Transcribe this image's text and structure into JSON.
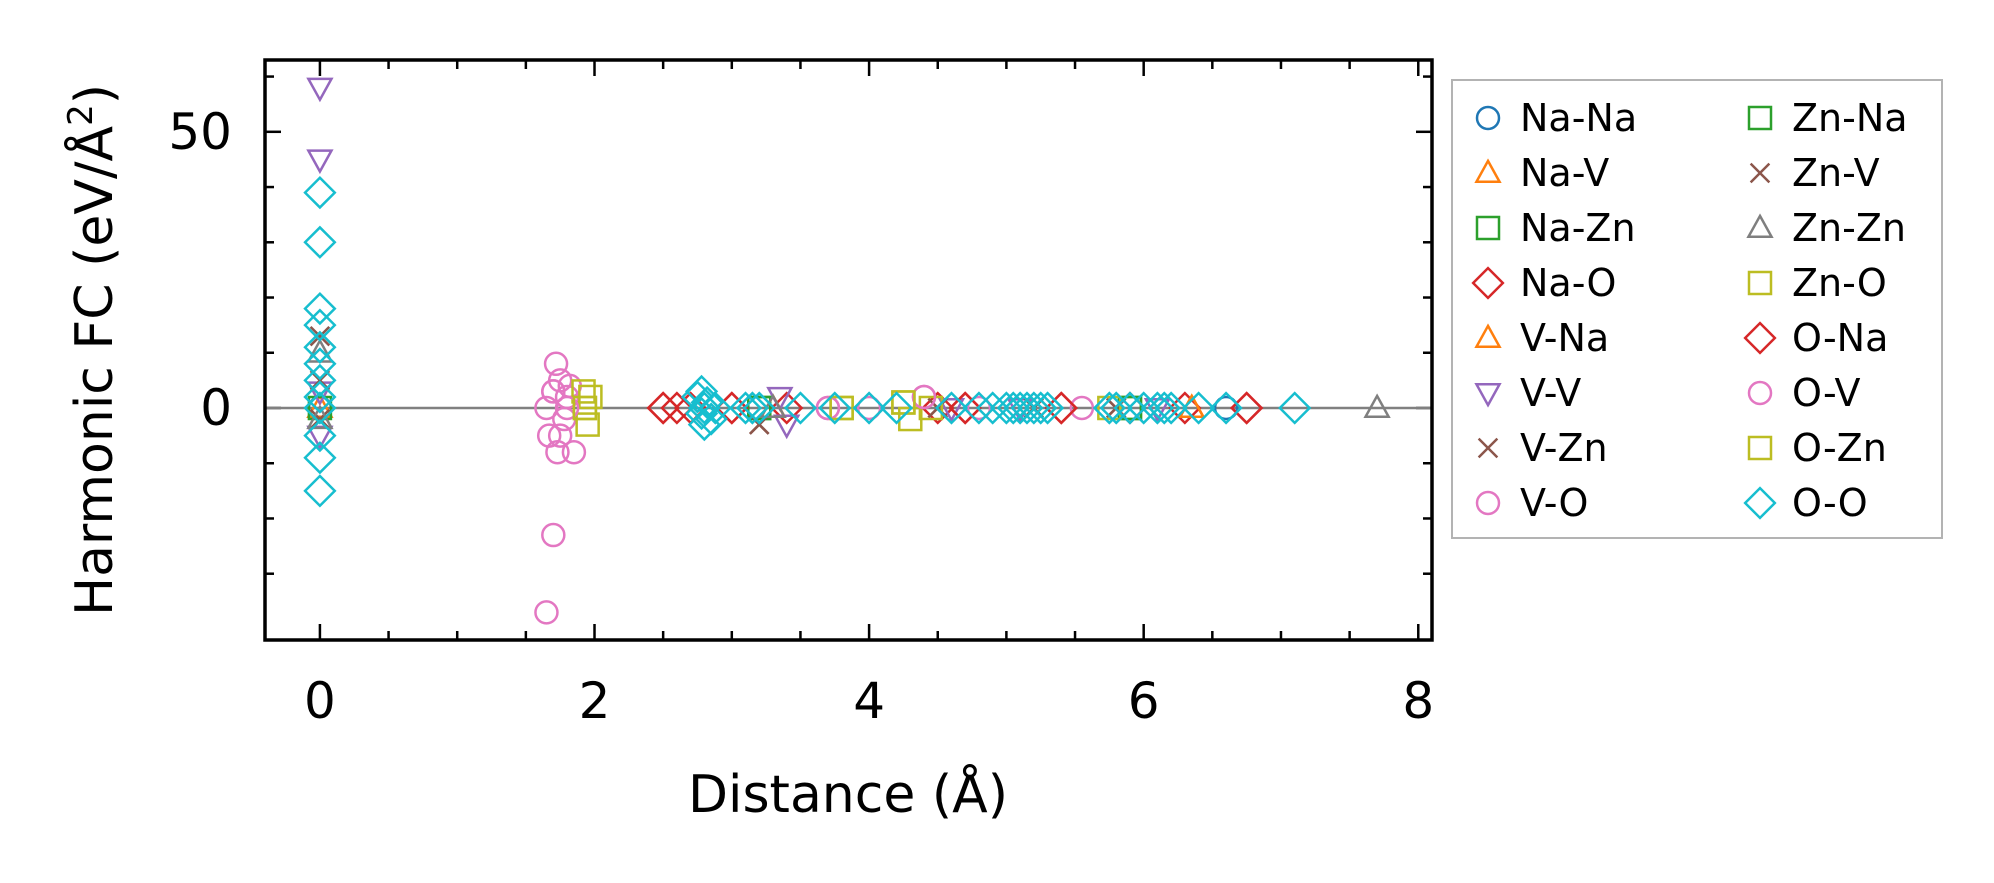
{
  "chart_data": {
    "type": "scatter",
    "xlabel": "Distance (Å)",
    "ylabel_parts": [
      "Harmonic FC (eV/Å",
      "2",
      ")"
    ],
    "xlim": [
      -0.4,
      8.1
    ],
    "ylim": [
      -42,
      63
    ],
    "xticks": [
      0,
      2,
      4,
      6,
      8
    ],
    "xtick_labels": [
      "0",
      "2",
      "4",
      "6",
      "8"
    ],
    "xminor": [
      0.5,
      1,
      1.5,
      2.5,
      3,
      3.5,
      4.5,
      5,
      5.5,
      6.5,
      7,
      7.5
    ],
    "yticks": [
      0,
      50
    ],
    "ytick_labels": [
      "0",
      "50"
    ],
    "yminor": [
      -30,
      -20,
      -10,
      10,
      20,
      30,
      40,
      60
    ],
    "zero_line": true,
    "legend_position": "outside-right",
    "series": [
      {
        "name": "Na-Na",
        "marker": "circle",
        "color": "#1f77b4",
        "points": [
          [
            0,
            0
          ],
          [
            6.6,
            0
          ]
        ]
      },
      {
        "name": "Na-V",
        "marker": "triangle-up",
        "color": "#ff7f0e",
        "points": [
          [
            0,
            0
          ],
          [
            3.3,
            0
          ],
          [
            6.35,
            0
          ]
        ]
      },
      {
        "name": "Na-Zn",
        "marker": "square",
        "color": "#2ca02c",
        "points": [
          [
            0,
            0
          ],
          [
            3.2,
            0
          ],
          [
            5.9,
            0
          ]
        ]
      },
      {
        "name": "Na-O",
        "marker": "diamond",
        "color": "#d62728",
        "points": [
          [
            2.5,
            0
          ],
          [
            2.6,
            0
          ],
          [
            2.7,
            0
          ],
          [
            3.0,
            0
          ],
          [
            3.4,
            0
          ],
          [
            4.5,
            0
          ],
          [
            4.7,
            0
          ],
          [
            5.4,
            0
          ],
          [
            5.9,
            0
          ],
          [
            6.3,
            0
          ],
          [
            6.75,
            0
          ]
        ]
      },
      {
        "name": "V-Na",
        "marker": "triangle-up",
        "color": "#ff7f0e",
        "points": [
          [
            3.3,
            0
          ],
          [
            6.35,
            0
          ]
        ]
      },
      {
        "name": "V-V",
        "marker": "triangle-down",
        "color": "#9467bd",
        "points": [
          [
            0,
            58
          ],
          [
            0,
            45
          ],
          [
            0,
            3
          ],
          [
            0,
            -5
          ],
          [
            3.35,
            2
          ],
          [
            3.4,
            -3
          ],
          [
            4.6,
            0
          ],
          [
            5.1,
            0
          ],
          [
            6.1,
            0
          ]
        ]
      },
      {
        "name": "V-Zn",
        "marker": "x",
        "color": "#8c564b",
        "points": [
          [
            0,
            13
          ],
          [
            0,
            5
          ],
          [
            0,
            -2
          ],
          [
            3.2,
            -3
          ],
          [
            4.5,
            0
          ],
          [
            5.2,
            0
          ],
          [
            5.8,
            0
          ]
        ]
      },
      {
        "name": "V-O",
        "marker": "circle",
        "color": "#e377c2",
        "points": [
          [
            1.65,
            0
          ],
          [
            1.67,
            -5
          ],
          [
            1.7,
            3
          ],
          [
            1.72,
            8
          ],
          [
            1.73,
            -8
          ],
          [
            1.75,
            5
          ],
          [
            1.78,
            -2
          ],
          [
            1.8,
            2
          ],
          [
            1.82,
            4
          ],
          [
            1.85,
            -8
          ],
          [
            1.7,
            -23
          ],
          [
            1.65,
            -37
          ],
          [
            3.7,
            0
          ],
          [
            4.0,
            0
          ],
          [
            4.4,
            2
          ],
          [
            4.8,
            0
          ],
          [
            5.55,
            0
          ]
        ]
      },
      {
        "name": "Zn-Na",
        "marker": "square",
        "color": "#2ca02c",
        "points": [
          [
            3.2,
            0
          ],
          [
            5.9,
            0
          ]
        ]
      },
      {
        "name": "Zn-V",
        "marker": "x",
        "color": "#8c564b",
        "points": [
          [
            3.2,
            -3
          ],
          [
            4.5,
            0
          ],
          [
            5.8,
            0
          ]
        ]
      },
      {
        "name": "Zn-Zn",
        "marker": "triangle-up",
        "color": "#7f7f7f",
        "points": [
          [
            0,
            10
          ],
          [
            0,
            -2
          ],
          [
            3.3,
            0
          ],
          [
            7.7,
            0
          ]
        ]
      },
      {
        "name": "Zn-O",
        "marker": "square",
        "color": "#bcbd22",
        "points": [
          [
            1.92,
            3
          ],
          [
            1.93,
            0
          ],
          [
            1.95,
            -3
          ],
          [
            1.97,
            2
          ],
          [
            3.8,
            0
          ],
          [
            4.25,
            1
          ],
          [
            4.3,
            -2
          ],
          [
            4.45,
            0
          ],
          [
            5.75,
            0
          ]
        ]
      },
      {
        "name": "O-Na",
        "marker": "diamond",
        "color": "#d62728",
        "points": [
          [
            2.5,
            0
          ],
          [
            3.0,
            0
          ],
          [
            4.7,
            0
          ],
          [
            5.4,
            0
          ],
          [
            6.75,
            0
          ]
        ]
      },
      {
        "name": "O-V",
        "marker": "circle",
        "color": "#e377c2",
        "points": [
          [
            1.7,
            3
          ],
          [
            1.75,
            -5
          ],
          [
            1.8,
            0
          ],
          [
            3.7,
            0
          ],
          [
            4.4,
            2
          ]
        ]
      },
      {
        "name": "O-Zn",
        "marker": "square",
        "color": "#bcbd22",
        "points": [
          [
            1.93,
            0
          ],
          [
            3.8,
            0
          ],
          [
            4.25,
            1
          ]
        ]
      },
      {
        "name": "O-O",
        "marker": "diamond",
        "color": "#17becf",
        "points": [
          [
            0,
            39
          ],
          [
            0,
            30
          ],
          [
            0,
            18
          ],
          [
            0,
            15
          ],
          [
            0,
            11
          ],
          [
            0,
            8
          ],
          [
            0,
            5
          ],
          [
            0,
            2
          ],
          [
            0,
            0
          ],
          [
            0,
            -5
          ],
          [
            0,
            -9
          ],
          [
            0,
            -15
          ],
          [
            2.75,
            2
          ],
          [
            2.78,
            -1
          ],
          [
            2.8,
            0
          ],
          [
            2.82,
            1
          ],
          [
            2.85,
            -2
          ],
          [
            2.88,
            0
          ],
          [
            2.8,
            -3
          ],
          [
            2.78,
            3
          ],
          [
            3.1,
            0
          ],
          [
            3.15,
            0
          ],
          [
            3.2,
            0
          ],
          [
            3.5,
            0
          ],
          [
            3.75,
            0
          ],
          [
            4.0,
            0
          ],
          [
            4.2,
            0
          ],
          [
            4.6,
            0
          ],
          [
            4.8,
            0
          ],
          [
            4.9,
            0
          ],
          [
            5.0,
            0
          ],
          [
            5.05,
            0
          ],
          [
            5.1,
            0
          ],
          [
            5.15,
            0
          ],
          [
            5.2,
            0
          ],
          [
            5.25,
            0
          ],
          [
            5.3,
            0
          ],
          [
            5.75,
            0
          ],
          [
            5.8,
            0
          ],
          [
            5.9,
            0
          ],
          [
            6.0,
            0
          ],
          [
            6.1,
            0
          ],
          [
            6.15,
            0
          ],
          [
            6.2,
            0
          ],
          [
            6.4,
            0
          ],
          [
            6.6,
            0
          ],
          [
            7.1,
            0
          ]
        ]
      }
    ]
  }
}
